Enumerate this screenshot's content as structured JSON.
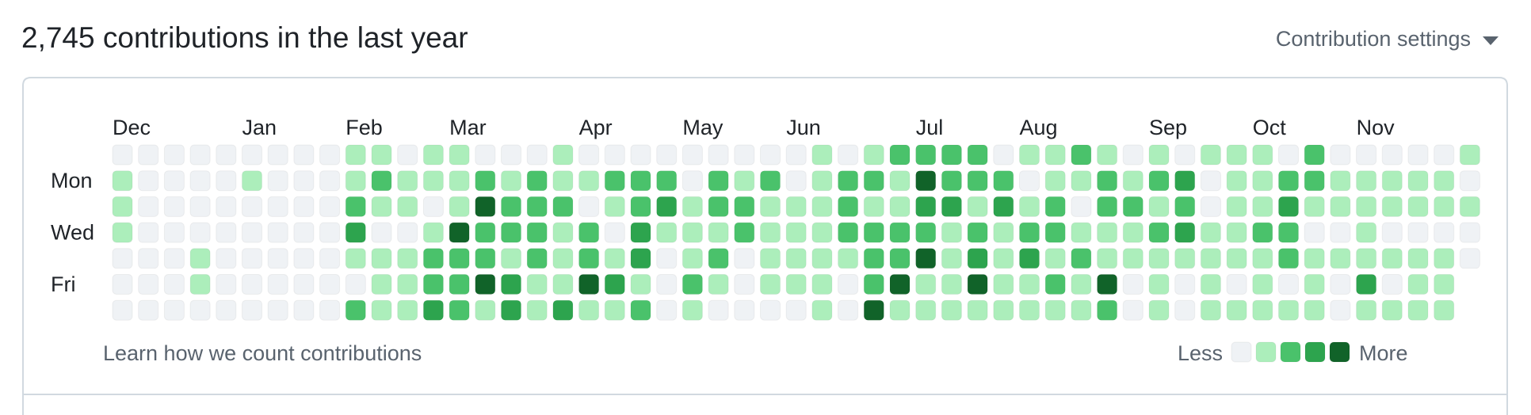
{
  "header": {
    "title": "2,745 contributions in the last year",
    "settings": "Contribution settings"
  },
  "calendar": {
    "months": [
      "Dec",
      null,
      null,
      null,
      null,
      "Jan",
      null,
      null,
      null,
      "Feb",
      null,
      null,
      null,
      "Mar",
      null,
      null,
      null,
      null,
      "Apr",
      null,
      null,
      null,
      "May",
      null,
      null,
      null,
      "Jun",
      null,
      null,
      null,
      null,
      "Jul",
      null,
      null,
      null,
      "Aug",
      null,
      null,
      null,
      null,
      "Sep",
      null,
      null,
      null,
      "Oct",
      null,
      null,
      null,
      "Nov",
      null,
      null,
      null,
      null
    ],
    "days": [
      null,
      "Mon",
      null,
      "Wed",
      null,
      "Fri",
      null
    ],
    "colors": [
      "#eff2f5",
      "#aceebb",
      "#4ac26b",
      "#2da44e",
      "#116329"
    ],
    "weeks": [
      [
        0,
        1,
        1,
        1,
        0,
        0,
        0
      ],
      [
        0,
        0,
        0,
        0,
        0,
        0,
        0
      ],
      [
        0,
        0,
        0,
        0,
        0,
        0,
        0
      ],
      [
        0,
        0,
        0,
        0,
        1,
        1,
        0
      ],
      [
        0,
        0,
        0,
        0,
        0,
        0,
        0
      ],
      [
        0,
        1,
        0,
        0,
        0,
        0,
        0
      ],
      [
        0,
        0,
        0,
        0,
        0,
        0,
        0
      ],
      [
        0,
        0,
        0,
        0,
        0,
        0,
        0
      ],
      [
        0,
        0,
        0,
        0,
        0,
        0,
        0
      ],
      [
        1,
        1,
        2,
        3,
        1,
        0,
        2
      ],
      [
        1,
        2,
        1,
        0,
        1,
        1,
        1
      ],
      [
        0,
        1,
        1,
        0,
        1,
        1,
        1
      ],
      [
        1,
        1,
        0,
        1,
        2,
        2,
        3
      ],
      [
        1,
        1,
        1,
        4,
        2,
        2,
        2
      ],
      [
        0,
        2,
        4,
        2,
        2,
        4,
        1
      ],
      [
        0,
        1,
        2,
        2,
        1,
        3,
        3
      ],
      [
        0,
        2,
        2,
        2,
        2,
        1,
        1
      ],
      [
        1,
        1,
        2,
        1,
        1,
        1,
        3
      ],
      [
        0,
        1,
        0,
        2,
        2,
        4,
        1
      ],
      [
        0,
        2,
        1,
        0,
        1,
        3,
        1
      ],
      [
        0,
        2,
        2,
        3,
        3,
        1,
        2
      ],
      [
        0,
        2,
        3,
        1,
        0,
        0,
        0
      ],
      [
        0,
        0,
        1,
        1,
        1,
        2,
        1
      ],
      [
        0,
        2,
        2,
        1,
        2,
        1,
        0
      ],
      [
        0,
        1,
        2,
        2,
        0,
        0,
        0
      ],
      [
        0,
        2,
        1,
        1,
        1,
        1,
        0
      ],
      [
        0,
        0,
        1,
        1,
        1,
        1,
        0
      ],
      [
        1,
        1,
        1,
        1,
        1,
        1,
        1
      ],
      [
        0,
        2,
        2,
        2,
        1,
        0,
        0
      ],
      [
        1,
        2,
        1,
        2,
        2,
        2,
        4
      ],
      [
        2,
        1,
        1,
        2,
        2,
        4,
        1
      ],
      [
        2,
        4,
        3,
        2,
        4,
        1,
        1
      ],
      [
        2,
        2,
        3,
        1,
        1,
        1,
        1
      ],
      [
        2,
        2,
        1,
        2,
        3,
        4,
        1
      ],
      [
        0,
        2,
        3,
        1,
        1,
        1,
        1
      ],
      [
        1,
        0,
        1,
        2,
        3,
        1,
        1
      ],
      [
        1,
        1,
        2,
        2,
        1,
        2,
        1
      ],
      [
        2,
        1,
        0,
        1,
        2,
        1,
        1
      ],
      [
        1,
        2,
        2,
        1,
        1,
        4,
        2
      ],
      [
        0,
        1,
        2,
        1,
        1,
        0,
        0
      ],
      [
        1,
        2,
        1,
        2,
        1,
        1,
        1
      ],
      [
        0,
        3,
        2,
        3,
        1,
        0,
        0
      ],
      [
        1,
        0,
        0,
        1,
        1,
        1,
        1
      ],
      [
        1,
        1,
        1,
        1,
        1,
        0,
        1
      ],
      [
        1,
        1,
        1,
        2,
        1,
        1,
        1
      ],
      [
        0,
        2,
        3,
        2,
        2,
        0,
        1
      ],
      [
        2,
        2,
        1,
        0,
        1,
        1,
        1
      ],
      [
        0,
        1,
        1,
        0,
        1,
        0,
        0
      ],
      [
        0,
        1,
        1,
        1,
        1,
        3,
        1
      ],
      [
        0,
        1,
        1,
        0,
        1,
        0,
        1
      ],
      [
        0,
        1,
        1,
        0,
        1,
        1,
        1
      ],
      [
        0,
        1,
        1,
        0,
        1,
        1,
        1
      ],
      [
        1,
        0,
        1,
        0,
        0,
        null,
        null
      ]
    ]
  },
  "footer": {
    "link": "Learn how we count contributions"
  },
  "legend": {
    "less": "Less",
    "more": "More",
    "levels": [
      0,
      1,
      2,
      3,
      4
    ]
  }
}
